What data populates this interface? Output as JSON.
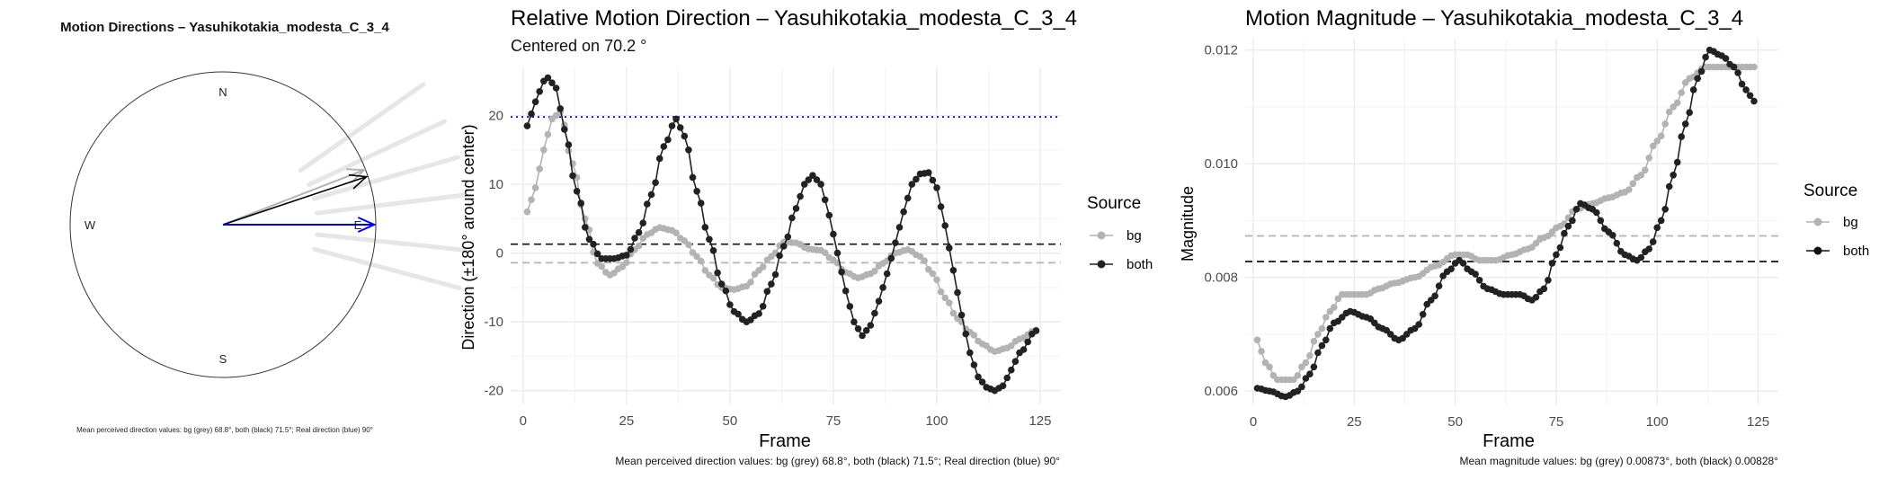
{
  "panels": {
    "compass": {
      "title": "Motion Directions – Yasuhikotakia_modesta_C_3_4",
      "labels": {
        "north": "N",
        "south": "S",
        "east": "E",
        "west": "W"
      },
      "caption": "Mean perceived direction values: bg (grey) 68.8°, both (black) 71.5°; Real direction (blue) 90°"
    },
    "direction": {
      "title": "Relative Motion Direction – Yasuhikotakia_modesta_C_3_4",
      "subtitle": "Centered on  70.2 °",
      "xlabel": "Frame",
      "ylabel": "Direction (±180° around center)",
      "legend_title": "Source",
      "caption": "Mean perceived direction values: bg (grey) 68.8°, both (black) 71.5°; Real direction (blue) 90°"
    },
    "magnitude": {
      "title": "Motion Magnitude – Yasuhikotakia_modesta_C_3_4",
      "xlabel": "Frame",
      "ylabel": "Magnitude",
      "legend_title": "Source",
      "caption": "Mean magnitude values: bg (grey) 0.00873°, both (black) 0.00828°"
    }
  },
  "colors": {
    "bg": "#b3b3b3",
    "both": "#222222",
    "real": "#0000ff",
    "grid": "#ebebeb"
  },
  "chart_data": [
    {
      "type": "scatter",
      "subtype": "compass",
      "directions_deg": {
        "bg": 68.8,
        "both": 71.5,
        "real": 90
      },
      "spokes_deg": [
        55,
        65,
        74,
        83,
        96,
        105
      ]
    },
    {
      "type": "line",
      "xlim": [
        -3,
        130
      ],
      "ylim": [
        -22,
        27
      ],
      "xticks": [
        0,
        25,
        50,
        75,
        100,
        125
      ],
      "yticks": [
        -20,
        -10,
        0,
        10,
        20
      ],
      "grid": true,
      "legend_position": "right",
      "hlines": [
        {
          "y": 19.8,
          "color": "blue",
          "style": "dotted"
        },
        {
          "y": 1.3,
          "color": "black",
          "style": "dashed"
        },
        {
          "y": -1.4,
          "color": "grey",
          "style": "dashed"
        }
      ],
      "series": [
        {
          "name": "bg",
          "points": [
            [
              1,
              6
            ],
            [
              3,
              9.5
            ],
            [
              5,
              15
            ],
            [
              7,
              19.5
            ],
            [
              9,
              20.5
            ],
            [
              12,
              13
            ],
            [
              15,
              5
            ],
            [
              18,
              -1.5
            ],
            [
              21,
              -3.2
            ],
            [
              24,
              -2
            ],
            [
              27,
              0.5
            ],
            [
              30,
              2.7
            ],
            [
              33,
              3.7
            ],
            [
              36,
              3.3
            ],
            [
              39,
              1.8
            ],
            [
              42,
              -0.5
            ],
            [
              45,
              -3.2
            ],
            [
              48,
              -5
            ],
            [
              51,
              -5.3
            ],
            [
              54,
              -4.8
            ],
            [
              57,
              -2.5
            ],
            [
              60,
              -0.5
            ],
            [
              63,
              1.6
            ],
            [
              66,
              1.5
            ],
            [
              69,
              0.6
            ],
            [
              72,
              0.4
            ],
            [
              75,
              -1
            ],
            [
              78,
              -2.8
            ],
            [
              81,
              -3.6
            ],
            [
              84,
              -3
            ],
            [
              87,
              -1.5
            ],
            [
              90,
              0
            ],
            [
              93,
              0.5
            ],
            [
              96,
              -0.5
            ],
            [
              99,
              -3
            ],
            [
              102,
              -6.5
            ],
            [
              105,
              -9.5
            ],
            [
              108,
              -11.5
            ],
            [
              111,
              -13.2
            ],
            [
              114,
              -14.3
            ],
            [
              117,
              -13.8
            ],
            [
              120,
              -12.5
            ],
            [
              124,
              -11.2
            ]
          ]
        },
        {
          "name": "both",
          "points": [
            [
              1,
              18.5
            ],
            [
              3,
              22
            ],
            [
              5,
              25
            ],
            [
              6,
              25.5
            ],
            [
              8,
              24
            ],
            [
              10,
              18
            ],
            [
              13,
              9
            ],
            [
              16,
              2
            ],
            [
              19,
              -0.8
            ],
            [
              22,
              -0.8
            ],
            [
              25,
              -0.3
            ],
            [
              28,
              3
            ],
            [
              31,
              8.5
            ],
            [
              34,
              15.5
            ],
            [
              37,
              19.5
            ],
            [
              39,
              17
            ],
            [
              42,
              9
            ],
            [
              45,
              2
            ],
            [
              48,
              -4.5
            ],
            [
              51,
              -8.5
            ],
            [
              54,
              -10
            ],
            [
              57,
              -8.8
            ],
            [
              60,
              -4.5
            ],
            [
              63,
              1
            ],
            [
              66,
              6.5
            ],
            [
              68,
              10
            ],
            [
              70,
              11.3
            ],
            [
              72,
              10
            ],
            [
              74,
              5.5
            ],
            [
              76,
              0
            ],
            [
              78,
              -5.5
            ],
            [
              80,
              -10
            ],
            [
              82,
              -12
            ],
            [
              84,
              -10.5
            ],
            [
              86,
              -7
            ],
            [
              88,
              -3
            ],
            [
              90,
              1.5
            ],
            [
              92,
              6
            ],
            [
              94,
              10
            ],
            [
              96,
              11.5
            ],
            [
              98,
              11.7
            ],
            [
              100,
              9.5
            ],
            [
              102,
              4
            ],
            [
              104,
              -2.5
            ],
            [
              106,
              -9
            ],
            [
              108,
              -14.5
            ],
            [
              110,
              -18
            ],
            [
              112,
              -19.5
            ],
            [
              114,
              -20
            ],
            [
              116,
              -19.3
            ],
            [
              118,
              -17
            ],
            [
              120,
              -14.5
            ],
            [
              124,
              -11.3
            ]
          ]
        }
      ]
    },
    {
      "type": "line",
      "xlim": [
        -2,
        130
      ],
      "ylim": [
        0.00575,
        0.0122
      ],
      "xticks": [
        0,
        25,
        50,
        75,
        100,
        125
      ],
      "yticks": [
        0.006,
        0.008,
        0.01,
        0.012
      ],
      "grid": true,
      "legend_position": "right",
      "hlines": [
        {
          "y": 0.00873,
          "color": "grey",
          "style": "dashed"
        },
        {
          "y": 0.00828,
          "color": "black",
          "style": "dashed"
        }
      ],
      "series": [
        {
          "name": "bg",
          "points": [
            [
              1,
              0.0069
            ],
            [
              3,
              0.0065
            ],
            [
              6,
              0.0062
            ],
            [
              10,
              0.0062
            ],
            [
              13,
              0.0065
            ],
            [
              16,
              0.007
            ],
            [
              19,
              0.0074
            ],
            [
              22,
              0.0077
            ],
            [
              25,
              0.0077
            ],
            [
              28,
              0.0077
            ],
            [
              31,
              0.0078
            ],
            [
              35,
              0.0079
            ],
            [
              40,
              0.008
            ],
            [
              45,
              0.0082
            ],
            [
              50,
              0.0084
            ],
            [
              53,
              0.0084
            ],
            [
              56,
              0.0083
            ],
            [
              60,
              0.0083
            ],
            [
              64,
              0.0084
            ],
            [
              68,
              0.0085
            ],
            [
              72,
              0.0087
            ],
            [
              76,
              0.0089
            ],
            [
              80,
              0.0092
            ],
            [
              84,
              0.0093
            ],
            [
              88,
              0.0094
            ],
            [
              92,
              0.0095
            ],
            [
              96,
              0.0098
            ],
            [
              100,
              0.0104
            ],
            [
              104,
              0.011
            ],
            [
              108,
              0.0115
            ],
            [
              112,
              0.0117
            ],
            [
              116,
              0.0117
            ],
            [
              120,
              0.0117
            ],
            [
              124,
              0.0117
            ]
          ]
        },
        {
          "name": "both",
          "points": [
            [
              1,
              0.00605
            ],
            [
              4,
              0.006
            ],
            [
              8,
              0.0059
            ],
            [
              11,
              0.006
            ],
            [
              14,
              0.0063
            ],
            [
              17,
              0.0068
            ],
            [
              20,
              0.0072
            ],
            [
              24,
              0.0074
            ],
            [
              28,
              0.0073
            ],
            [
              32,
              0.0071
            ],
            [
              36,
              0.0069
            ],
            [
              40,
              0.0071
            ],
            [
              44,
              0.0076
            ],
            [
              48,
              0.0081
            ],
            [
              51,
              0.0083
            ],
            [
              54,
              0.0081
            ],
            [
              58,
              0.0078
            ],
            [
              62,
              0.0077
            ],
            [
              66,
              0.0077
            ],
            [
              69,
              0.0076
            ],
            [
              72,
              0.0078
            ],
            [
              75,
              0.0084
            ],
            [
              78,
              0.0089
            ],
            [
              81,
              0.0093
            ],
            [
              84,
              0.0092
            ],
            [
              88,
              0.0088
            ],
            [
              92,
              0.0084
            ],
            [
              95,
              0.0083
            ],
            [
              98,
              0.0085
            ],
            [
              101,
              0.009
            ],
            [
              104,
              0.0098
            ],
            [
              107,
              0.0107
            ],
            [
              110,
              0.0115
            ],
            [
              113,
              0.012
            ],
            [
              116,
              0.0119
            ],
            [
              119,
              0.0117
            ],
            [
              122,
              0.0113
            ],
            [
              124,
              0.0111
            ]
          ]
        }
      ]
    }
  ]
}
